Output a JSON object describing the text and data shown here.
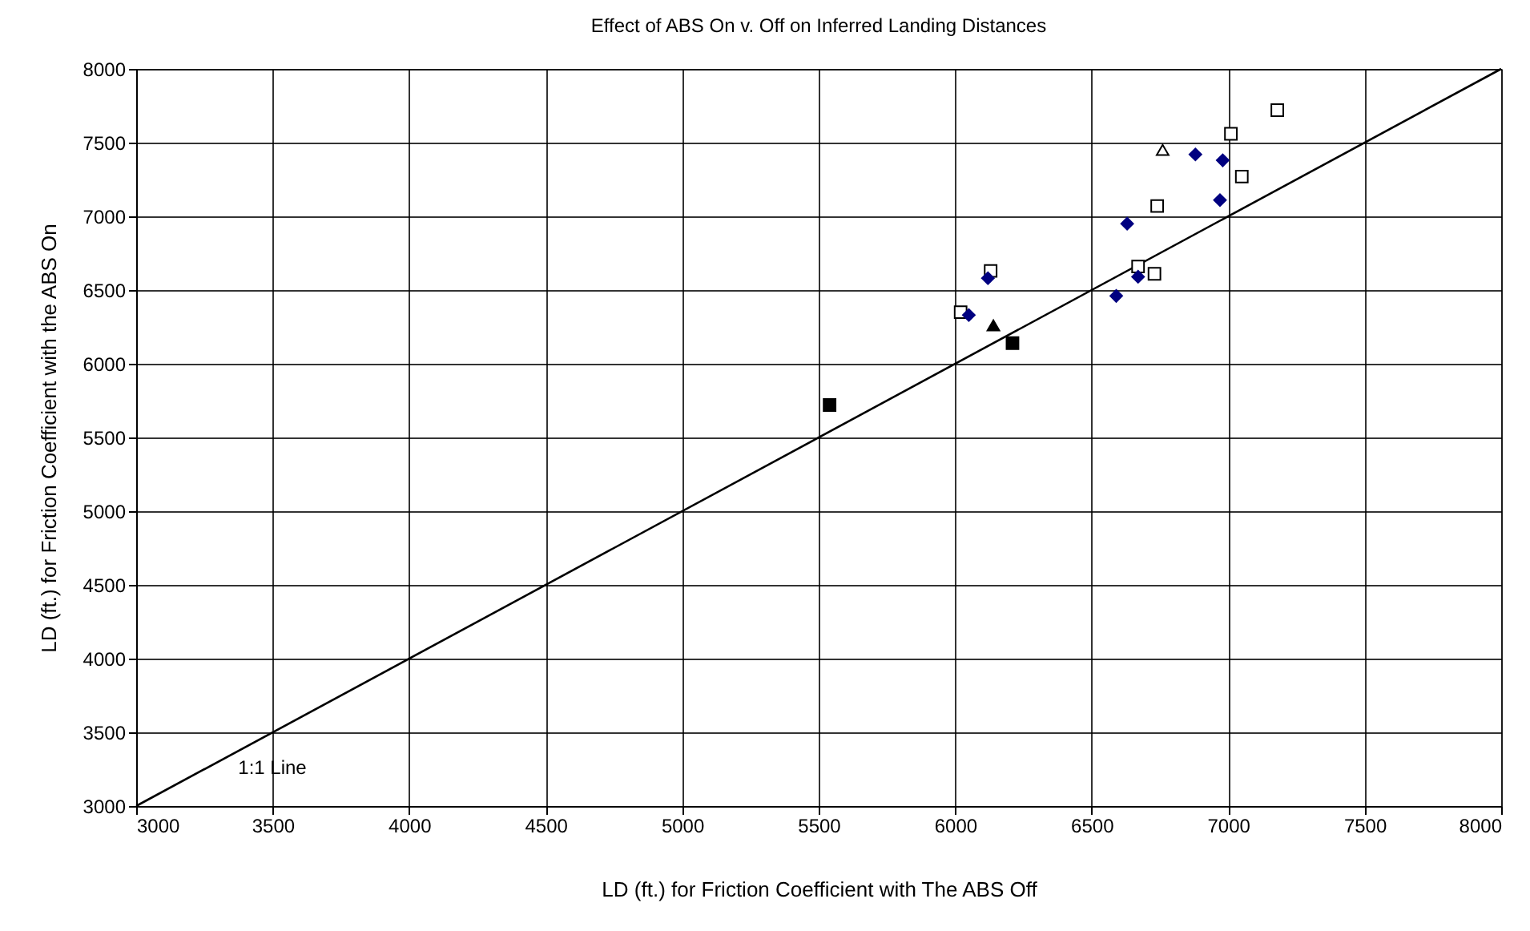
{
  "chart_data": {
    "type": "scatter",
    "title": "Effect of ABS On v. Off on Inferred Landing Distances",
    "xlabel": "LD (ft.) for Friction Coefficient with The ABS Off",
    "ylabel": "LD (ft.) for Friction Coefficient with the ABS On",
    "xlim": [
      3000,
      8000
    ],
    "xticks": [
      3000,
      3500,
      4000,
      4500,
      5000,
      5500,
      6000,
      6500,
      7000,
      7500,
      8000
    ],
    "ylim": [
      3000,
      8000
    ],
    "yticks": [
      3000,
      3500,
      4000,
      4500,
      5000,
      5500,
      6000,
      6500,
      7000,
      7500,
      8000
    ],
    "grid": true,
    "series": [
      {
        "type": "line",
        "color": "#000000",
        "x": [
          3000,
          8000
        ],
        "values": [
          3000,
          8000
        ]
      },
      {
        "color": "#000000",
        "marker": "square",
        "x": [
          5540,
          6210
        ],
        "values": [
          5720,
          6140
        ]
      },
      {
        "color": "#ffffff",
        "marker": "square",
        "x": [
          7180,
          7010,
          7050,
          6740,
          6670,
          6730,
          6130,
          6020
        ],
        "values": [
          7720,
          7560,
          7270,
          7070,
          6660,
          6610,
          6630,
          6350
        ]
      },
      {
        "color": "#ffffff",
        "marker": "triangle",
        "x": [
          6760
        ],
        "values": [
          7450
        ]
      },
      {
        "color": "#000000",
        "marker": "triangle",
        "x": [
          6140
        ],
        "values": [
          6260
        ]
      },
      {
        "color": "#000080",
        "marker": "diamond",
        "x": [
          6880,
          6980,
          6970,
          6630,
          6670,
          6590,
          6120,
          6050
        ],
        "values": [
          7420,
          7380,
          7110,
          6950,
          6590,
          6460,
          6580,
          6330
        ]
      }
    ],
    "annotations": [
      "1:1 Line"
    ]
  }
}
